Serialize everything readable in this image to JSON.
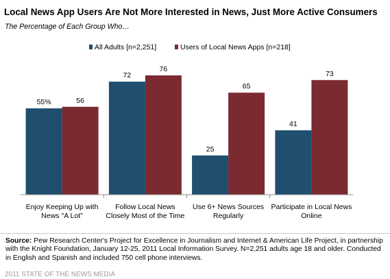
{
  "chart_data": {
    "type": "bar",
    "title": "Local News App Users Are Not More Interested in News, Just More Active Consumers",
    "subtitle": "The Percentage of Each Group Who…",
    "categories": [
      "Enjoy Keeping Up with News \"A Lot\"",
      "Follow Local News Closely Most of the Time",
      "Use 6+ News Sources Regularly",
      "Participate in Local News Online"
    ],
    "category_lines": [
      [
        "Enjoy Keeping Up with",
        "News \"A Lot\""
      ],
      [
        "Follow Local News",
        "Closely Most of the Time"
      ],
      [
        "Use 6+ News Sources",
        "Regularly"
      ],
      [
        "Participate in Local News",
        "Online"
      ]
    ],
    "series": [
      {
        "name": "All Adults [n=2,251]",
        "values": [
          55,
          72,
          25,
          41
        ],
        "labels": [
          "55%",
          "72",
          "25",
          "41"
        ],
        "color": "#1f4e6e"
      },
      {
        "name": "Users of Local News Apps [n=218]",
        "values": [
          56,
          76,
          65,
          73
        ],
        "labels": [
          "56",
          "76",
          "65",
          "73"
        ],
        "color": "#7b2a32"
      }
    ],
    "ylim": [
      0,
      100
    ],
    "xlabel": "",
    "ylabel": "",
    "grid": false,
    "legend_position": "top"
  },
  "source_label": "Source:",
  "source_text": "Pew Research Center's Project for Excellence in Journalism and Internet & American Life Project, in partnership with the Knight Foundation, January 12-25, 2011 Local Information Survey. N=2,251 adults age 18 and older. Conducted in English and Spanish and included 750 cell phone interviews.",
  "footer": "2011 STATE OF THE NEWS MEDIA"
}
